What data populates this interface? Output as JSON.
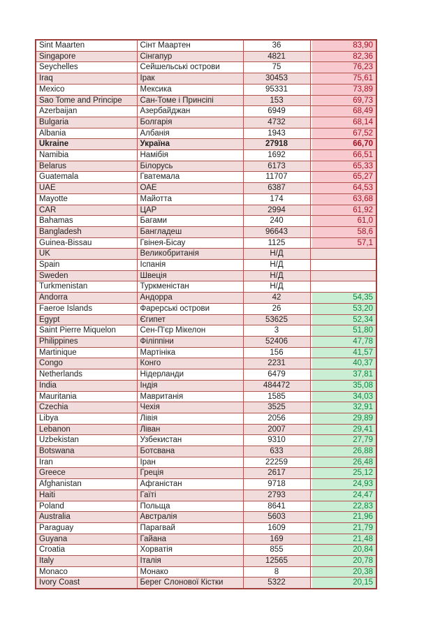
{
  "table": {
    "na_label": "Н/Д",
    "colors": {
      "stripe_pink": "#f2dcdb",
      "border_red": "#b0524e",
      "bad_fill": "#f8c9ce",
      "bad_text": "#9c1322",
      "good_fill": "#caeed4",
      "good_text": "#11803c"
    },
    "rows": [
      {
        "en": "Sint Maarten",
        "uk": "Сінт Маартен",
        "count": "36",
        "value": "83,90",
        "status": "bad"
      },
      {
        "en": "Singapore",
        "uk": "Сінгапур",
        "count": "4821",
        "value": "82,36",
        "status": "bad"
      },
      {
        "en": "Seychelles",
        "uk": "Сейшельські острови",
        "count": "75",
        "value": "76,23",
        "status": "bad"
      },
      {
        "en": "Iraq",
        "uk": "Ірак",
        "count": "30453",
        "value": "75,61",
        "status": "bad"
      },
      {
        "en": "Mexico",
        "uk": "Мексика",
        "count": "95331",
        "value": "73,89",
        "status": "bad"
      },
      {
        "en": "Sao Tome and Principe",
        "uk": "Сан-Томе і Принсіпі",
        "count": "153",
        "value": "69,73",
        "status": "bad"
      },
      {
        "en": "Azerbaijan",
        "uk": "Азербайджан",
        "count": "6949",
        "value": "68,49",
        "status": "bad"
      },
      {
        "en": "Bulgaria",
        "uk": "Болгарія",
        "count": "4732",
        "value": "68,14",
        "status": "bad"
      },
      {
        "en": "Albania",
        "uk": "Албанія",
        "count": "1943",
        "value": "67,52",
        "status": "bad"
      },
      {
        "en": "Ukraine",
        "uk": "Україна",
        "count": "27918",
        "value": "66,70",
        "status": "bad",
        "bold": true
      },
      {
        "en": "Namibia",
        "uk": "Намібія",
        "count": "1692",
        "value": "66,51",
        "status": "bad"
      },
      {
        "en": "Belarus",
        "uk": "Білорусь",
        "count": "6173",
        "value": "65,33",
        "status": "bad"
      },
      {
        "en": "Guatemala",
        "uk": "Гватемала",
        "count": "11707",
        "value": "65,27",
        "status": "bad"
      },
      {
        "en": "UAE",
        "uk": "ОАЕ",
        "count": "6387",
        "value": "64,53",
        "status": "bad"
      },
      {
        "en": "Mayotte",
        "uk": "Майотта",
        "count": "174",
        "value": "63,68",
        "status": "bad"
      },
      {
        "en": "CAR",
        "uk": "ЦАР",
        "count": "2994",
        "value": "61,92",
        "status": "bad"
      },
      {
        "en": "Bahamas",
        "uk": "Багами",
        "count": "240",
        "value": "61,0",
        "status": "bad"
      },
      {
        "en": "Bangladesh",
        "uk": "Бангладеш",
        "count": "96643",
        "value": "58,6",
        "status": "bad"
      },
      {
        "en": "Guinea-Bissau",
        "uk": "Гвінея-Бісау",
        "count": "1125",
        "value": "57,1",
        "status": "bad"
      },
      {
        "en": "UK",
        "uk": "Великобританія",
        "count": "Н/Д",
        "value": "",
        "status": "na"
      },
      {
        "en": "Spain",
        "uk": "Іспанія",
        "count": "Н/Д",
        "value": "",
        "status": "na"
      },
      {
        "en": "Sweden",
        "uk": "Швеція",
        "count": "Н/Д",
        "value": "",
        "status": "na"
      },
      {
        "en": "Turkmenistan",
        "uk": "Туркменістан",
        "count": "Н/Д",
        "value": "",
        "status": "na"
      },
      {
        "en": "Andorra",
        "uk": "Андорра",
        "count": "42",
        "value": "54,35",
        "status": "good"
      },
      {
        "en": "Faeroe Islands",
        "uk": "Фарерські острови",
        "count": "26",
        "value": "53,20",
        "status": "good"
      },
      {
        "en": "Egypt",
        "uk": "Єгипет",
        "count": "53625",
        "value": "52,34",
        "status": "good"
      },
      {
        "en": "Saint Pierre Miquelon",
        "uk": "Сен-П'єр Мікелон",
        "count": "3",
        "value": "51,80",
        "status": "good"
      },
      {
        "en": "Philippines",
        "uk": "Філіппіни",
        "count": "52406",
        "value": "47,78",
        "status": "good"
      },
      {
        "en": "Martinique",
        "uk": "Мартініка",
        "count": "156",
        "value": "41,57",
        "status": "good"
      },
      {
        "en": "Congo",
        "uk": "Конго",
        "count": "2231",
        "value": "40,37",
        "status": "good"
      },
      {
        "en": "Netherlands",
        "uk": "Нідерланди",
        "count": "6479",
        "value": "37,81",
        "status": "good"
      },
      {
        "en": "India",
        "uk": "Індія",
        "count": "484472",
        "value": "35,08",
        "status": "good"
      },
      {
        "en": "Mauritania",
        "uk": "Мавританія",
        "count": "1585",
        "value": "34,03",
        "status": "good"
      },
      {
        "en": "Czechia",
        "uk": "Чехія",
        "count": "3525",
        "value": "32,91",
        "status": "good"
      },
      {
        "en": "Libya",
        "uk": "Лівія",
        "count": "2056",
        "value": "29,89",
        "status": "good"
      },
      {
        "en": "Lebanon",
        "uk": "Ліван",
        "count": "2007",
        "value": "29,41",
        "status": "good"
      },
      {
        "en": "Uzbekistan",
        "uk": "Узбекистан",
        "count": "9310",
        "value": "27,79",
        "status": "good"
      },
      {
        "en": "Botswana",
        "uk": "Ботсвана",
        "count": "633",
        "value": "26,88",
        "status": "good"
      },
      {
        "en": "Iran",
        "uk": "Іран",
        "count": "22259",
        "value": "26,48",
        "status": "good"
      },
      {
        "en": "Greece",
        "uk": "Греція",
        "count": "2617",
        "value": "25,12",
        "status": "good"
      },
      {
        "en": "Afghanistan",
        "uk": "Афганістан",
        "count": "9718",
        "value": "24,93",
        "status": "good"
      },
      {
        "en": "Haiti",
        "uk": "Гаїті",
        "count": "2793",
        "value": "24,47",
        "status": "good"
      },
      {
        "en": "Poland",
        "uk": "Польща",
        "count": "8641",
        "value": "22,83",
        "status": "good"
      },
      {
        "en": "Australia",
        "uk": "Австралія",
        "count": "5603",
        "value": "21,96",
        "status": "good"
      },
      {
        "en": "Paraguay",
        "uk": "Парагвай",
        "count": "1609",
        "value": "21,79",
        "status": "good"
      },
      {
        "en": "Guyana",
        "uk": "Гайана",
        "count": "169",
        "value": "21,48",
        "status": "good"
      },
      {
        "en": "Croatia",
        "uk": "Хорватія",
        "count": "855",
        "value": "20,84",
        "status": "good"
      },
      {
        "en": "Italy",
        "uk": "Італія",
        "count": "12565",
        "value": "20,78",
        "status": "good"
      },
      {
        "en": "Monaco",
        "uk": "Монако",
        "count": "8",
        "value": "20,38",
        "status": "good"
      },
      {
        "en": "Ivory Coast",
        "uk": "Берег Слонової Кістки",
        "count": "5322",
        "value": "20,15",
        "status": "good"
      }
    ]
  }
}
